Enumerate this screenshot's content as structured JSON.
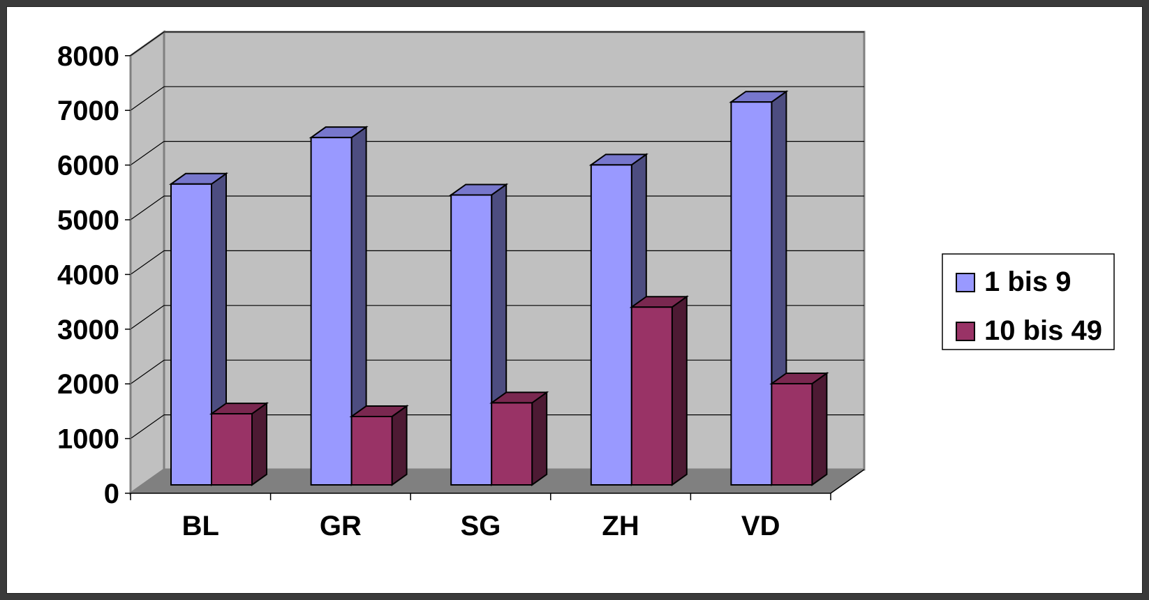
{
  "chart_data": {
    "type": "bar",
    "style": "3d-clustered-column",
    "categories": [
      "BL",
      "GR",
      "SG",
      "ZH",
      "VD"
    ],
    "series": [
      {
        "name": "1 bis 9",
        "values": [
          5500,
          6350,
          5300,
          5850,
          7000
        ],
        "color": "#9999ff"
      },
      {
        "name": "10 bis 49",
        "values": [
          1300,
          1250,
          1500,
          3250,
          1850
        ],
        "color": "#993366"
      }
    ],
    "y_ticks": [
      "0",
      "1000",
      "2000",
      "3000",
      "4000",
      "5000",
      "6000",
      "7000",
      "8000"
    ],
    "ylim": [
      0,
      8000
    ],
    "grid": true,
    "legend_position": "right",
    "colors": {
      "plot_wall": "#c0c0c0",
      "plot_floor": "#808080",
      "series1_side": "#4d4d80",
      "series2_side": "#4d1a33",
      "series1_top": "#7777cc",
      "series2_top": "#7a2850"
    }
  }
}
